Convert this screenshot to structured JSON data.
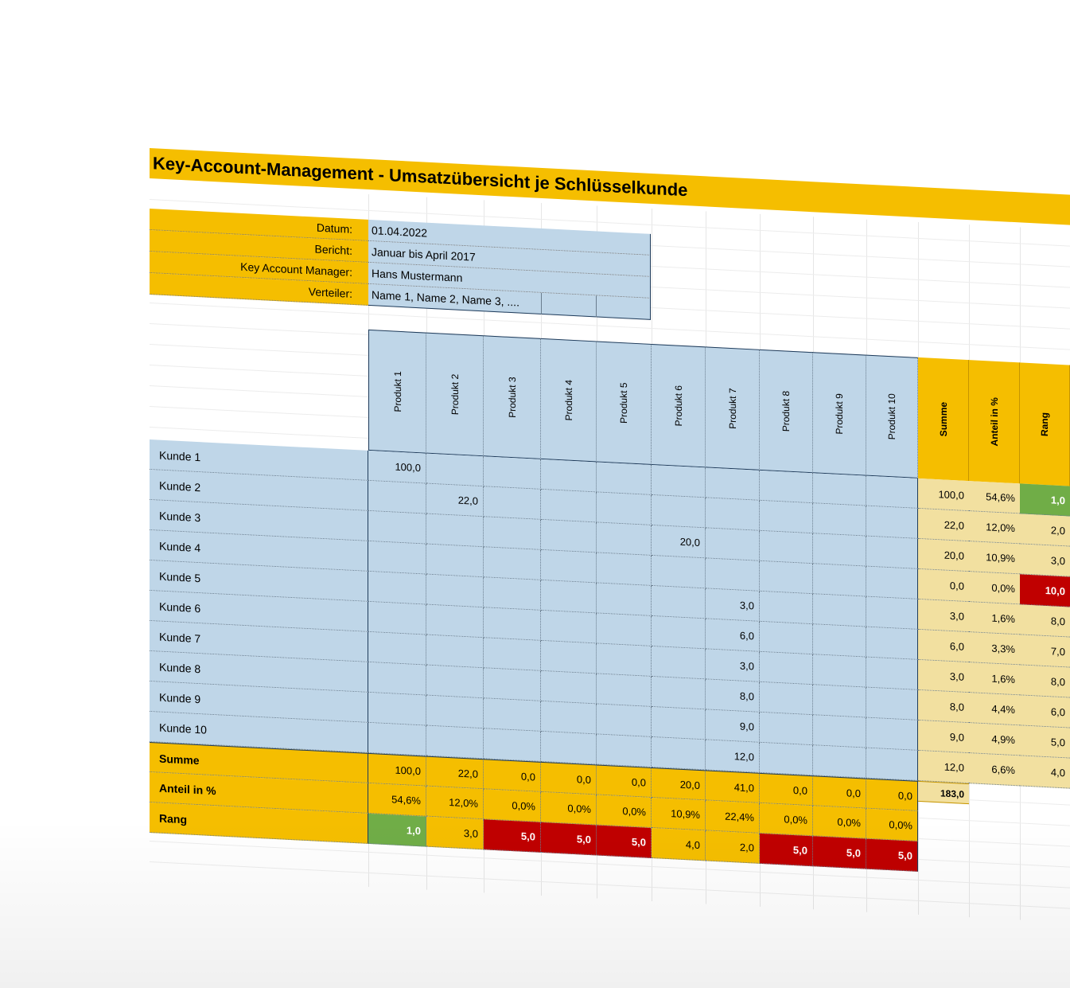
{
  "title": "Key-Account-Management - Umsatzübersicht je Schlüsselkunde",
  "info": [
    {
      "label": "Datum:",
      "value": "01.04.2022"
    },
    {
      "label": "Bericht:",
      "value": "Januar bis April 2017"
    },
    {
      "label": "Key Account Manager:",
      "value": "Hans Mustermann"
    },
    {
      "label": "Verteiler:",
      "value": "Name 1, Name 2, Name 3, ...."
    }
  ],
  "products": [
    "Produkt 1",
    "Produkt 2",
    "Produkt 3",
    "Produkt 4",
    "Produkt 5",
    "Produkt 6",
    "Produkt 7",
    "Produkt 8",
    "Produkt 9",
    "Produkt 10"
  ],
  "summary_headers": [
    "Summe",
    "Anteil in %",
    "Rang"
  ],
  "customers": [
    {
      "name": "Kunde 1",
      "values": [
        "100,0",
        "",
        "",
        "",
        "",
        "",
        "",
        "",
        "",
        ""
      ],
      "summe": "100,0",
      "anteil": "54,6%",
      "rang": "1,0",
      "rang_status": "best"
    },
    {
      "name": "Kunde 2",
      "values": [
        "",
        "22,0",
        "",
        "",
        "",
        "",
        "",
        "",
        "",
        ""
      ],
      "summe": "22,0",
      "anteil": "12,0%",
      "rang": "2,0",
      "rang_status": "normal"
    },
    {
      "name": "Kunde 3",
      "values": [
        "",
        "",
        "",
        "",
        "",
        "20,0",
        "",
        "",
        "",
        ""
      ],
      "summe": "20,0",
      "anteil": "10,9%",
      "rang": "3,0",
      "rang_status": "normal"
    },
    {
      "name": "Kunde 4",
      "values": [
        "",
        "",
        "",
        "",
        "",
        "",
        "",
        "",
        "",
        ""
      ],
      "summe": "0,0",
      "anteil": "0,0%",
      "rang": "10,0",
      "rang_status": "worst"
    },
    {
      "name": "Kunde 5",
      "values": [
        "",
        "",
        "",
        "",
        "",
        "",
        "3,0",
        "",
        "",
        ""
      ],
      "summe": "3,0",
      "anteil": "1,6%",
      "rang": "8,0",
      "rang_status": "normal"
    },
    {
      "name": "Kunde 6",
      "values": [
        "",
        "",
        "",
        "",
        "",
        "",
        "6,0",
        "",
        "",
        ""
      ],
      "summe": "6,0",
      "anteil": "3,3%",
      "rang": "7,0",
      "rang_status": "normal"
    },
    {
      "name": "Kunde 7",
      "values": [
        "",
        "",
        "",
        "",
        "",
        "",
        "3,0",
        "",
        "",
        ""
      ],
      "summe": "3,0",
      "anteil": "1,6%",
      "rang": "8,0",
      "rang_status": "normal"
    },
    {
      "name": "Kunde 8",
      "values": [
        "",
        "",
        "",
        "",
        "",
        "",
        "8,0",
        "",
        "",
        ""
      ],
      "summe": "8,0",
      "anteil": "4,4%",
      "rang": "6,0",
      "rang_status": "normal"
    },
    {
      "name": "Kunde 9",
      "values": [
        "",
        "",
        "",
        "",
        "",
        "",
        "9,0",
        "",
        "",
        ""
      ],
      "summe": "9,0",
      "anteil": "4,9%",
      "rang": "5,0",
      "rang_status": "normal"
    },
    {
      "name": "Kunde 10",
      "values": [
        "",
        "",
        "",
        "",
        "",
        "",
        "12,0",
        "",
        "",
        ""
      ],
      "summe": "12,0",
      "anteil": "6,6%",
      "rang": "4,0",
      "rang_status": "normal"
    }
  ],
  "total_sum": "183,0",
  "footer": [
    {
      "label": "Summe",
      "values": [
        "100,0",
        "22,0",
        "0,0",
        "0,0",
        "0,0",
        "20,0",
        "41,0",
        "0,0",
        "0,0",
        "0,0"
      ]
    },
    {
      "label": "Anteil in %",
      "values": [
        "54,6%",
        "12,0%",
        "0,0%",
        "0,0%",
        "0,0%",
        "10,9%",
        "22,4%",
        "0,0%",
        "0,0%",
        "0,0%"
      ]
    },
    {
      "label": "Rang",
      "values": [
        "1,0",
        "3,0",
        "5,0",
        "5,0",
        "5,0",
        "4,0",
        "2,0",
        "5,0",
        "5,0",
        "5,0"
      ],
      "status": [
        "best",
        "normal",
        "worst",
        "worst",
        "worst",
        "normal",
        "normal",
        "worst",
        "worst",
        "worst"
      ]
    }
  ]
}
